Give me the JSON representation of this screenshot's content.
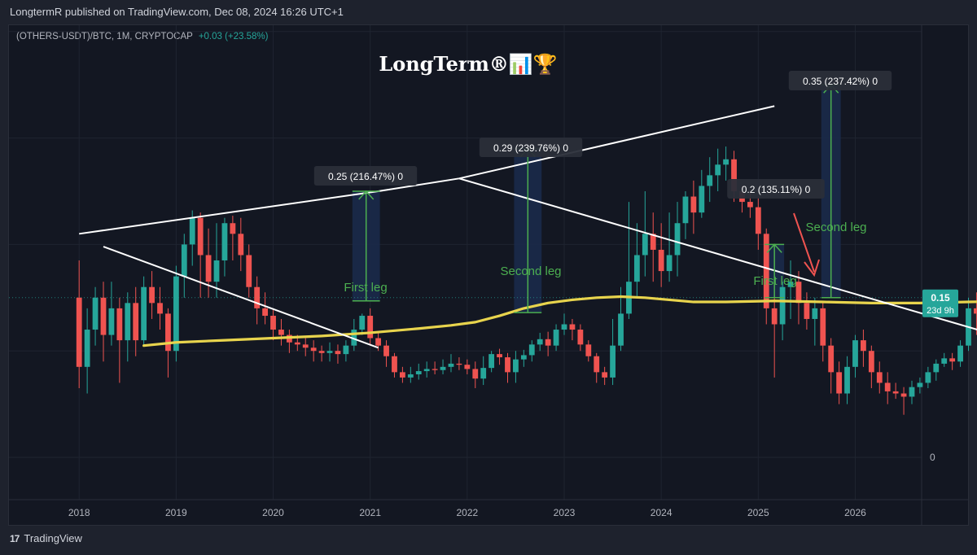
{
  "header": {
    "publisher_text": "LongtermR published on TradingView.com, Dec 08, 2024 16:26 UTC+1"
  },
  "symbol_info": {
    "label": "(OTHERS-USDT)/BTC, 1M, CRYPTOCAP",
    "change": "+0.03 (+23.58%)"
  },
  "watermark": {
    "text": "LongTerm®📊🏆"
  },
  "footer": {
    "logo_text": "TradingView"
  },
  "colors": {
    "up": "#26a69a",
    "down": "#ef5350",
    "ma": "#e8d44d",
    "trendline": "#ffffff",
    "measure": "#4caf50",
    "projection_fill": "#1b2a4a",
    "red_arrow": "#ef5350",
    "price_badge": "#26a69a"
  },
  "chart_data": {
    "type": "candlestick",
    "x_tick_labels": [
      "2018",
      "2019",
      "2020",
      "2021",
      "2022",
      "2023",
      "2024",
      "2025",
      "2026"
    ],
    "y_tick_labels": [
      "0"
    ],
    "current_price": {
      "value": "0.15",
      "countdown": "23d 9h"
    },
    "measurements": [
      {
        "label": "0.25 (216.47%) 0",
        "leg_text": "First leg",
        "from": 0.147,
        "to": 0.25
      },
      {
        "label": "0.29 (239.76%) 0",
        "leg_text": "Second leg",
        "from": 0.136,
        "to": 0.29
      },
      {
        "label": "0.2 (135.11%) 0",
        "leg_text": "First leg",
        "from": 0.15,
        "to": 0.2
      },
      {
        "label": "0.35 (237.42%) 0",
        "leg_text": "Second leg",
        "from": 0.15,
        "to": 0.35
      }
    ],
    "candles": [
      [
        0.15,
        0.085,
        0.185,
        0.065
      ],
      [
        0.085,
        0.12,
        0.14,
        0.06
      ],
      [
        0.12,
        0.15,
        0.16,
        0.105
      ],
      [
        0.15,
        0.115,
        0.165,
        0.09
      ],
      [
        0.115,
        0.14,
        0.165,
        0.105
      ],
      [
        0.14,
        0.11,
        0.15,
        0.07
      ],
      [
        0.11,
        0.145,
        0.155,
        0.09
      ],
      [
        0.145,
        0.11,
        0.16,
        0.095
      ],
      [
        0.11,
        0.16,
        0.17,
        0.105
      ],
      [
        0.16,
        0.145,
        0.175,
        0.13
      ],
      [
        0.145,
        0.135,
        0.16,
        0.12
      ],
      [
        0.135,
        0.1,
        0.14,
        0.075
      ],
      [
        0.1,
        0.17,
        0.18,
        0.09
      ],
      [
        0.17,
        0.2,
        0.21,
        0.15
      ],
      [
        0.2,
        0.225,
        0.232,
        0.18
      ],
      [
        0.225,
        0.19,
        0.23,
        0.15
      ],
      [
        0.19,
        0.165,
        0.215,
        0.15
      ],
      [
        0.165,
        0.185,
        0.22,
        0.15
      ],
      [
        0.185,
        0.22,
        0.225,
        0.17
      ],
      [
        0.22,
        0.21,
        0.227,
        0.185
      ],
      [
        0.21,
        0.19,
        0.225,
        0.175
      ],
      [
        0.19,
        0.16,
        0.2,
        0.15
      ],
      [
        0.16,
        0.14,
        0.17,
        0.125
      ],
      [
        0.14,
        0.133,
        0.155,
        0.125
      ],
      [
        0.133,
        0.12,
        0.14,
        0.11
      ],
      [
        0.12,
        0.115,
        0.13,
        0.105
      ],
      [
        0.115,
        0.108,
        0.12,
        0.098
      ],
      [
        0.108,
        0.106,
        0.115,
        0.1
      ],
      [
        0.106,
        0.103,
        0.112,
        0.095
      ],
      [
        0.103,
        0.1,
        0.11,
        0.09
      ],
      [
        0.1,
        0.098,
        0.105,
        0.09
      ],
      [
        0.098,
        0.1,
        0.108,
        0.09
      ],
      [
        0.1,
        0.097,
        0.106,
        0.088
      ],
      [
        0.097,
        0.105,
        0.11,
        0.09
      ],
      [
        0.105,
        0.12,
        0.13,
        0.1
      ],
      [
        0.12,
        0.133,
        0.135,
        0.115
      ],
      [
        0.133,
        0.112,
        0.14,
        0.105
      ],
      [
        0.112,
        0.105,
        0.118,
        0.1
      ],
      [
        0.105,
        0.095,
        0.11,
        0.085
      ],
      [
        0.095,
        0.08,
        0.098,
        0.075
      ],
      [
        0.08,
        0.075,
        0.085,
        0.07
      ],
      [
        0.075,
        0.078,
        0.085,
        0.07
      ],
      [
        0.078,
        0.081,
        0.088,
        0.073
      ],
      [
        0.081,
        0.083,
        0.09,
        0.075
      ],
      [
        0.083,
        0.082,
        0.09,
        0.078
      ],
      [
        0.082,
        0.085,
        0.092,
        0.078
      ],
      [
        0.085,
        0.088,
        0.097,
        0.08
      ],
      [
        0.088,
        0.087,
        0.094,
        0.082
      ],
      [
        0.087,
        0.083,
        0.092,
        0.078
      ],
      [
        0.083,
        0.074,
        0.09,
        0.065
      ],
      [
        0.074,
        0.084,
        0.095,
        0.068
      ],
      [
        0.084,
        0.097,
        0.1,
        0.08
      ],
      [
        0.097,
        0.094,
        0.102,
        0.087
      ],
      [
        0.094,
        0.08,
        0.098,
        0.07
      ],
      [
        0.08,
        0.092,
        0.1,
        0.07
      ],
      [
        0.092,
        0.096,
        0.101,
        0.085
      ],
      [
        0.096,
        0.106,
        0.11,
        0.09
      ],
      [
        0.106,
        0.111,
        0.117,
        0.1
      ],
      [
        0.111,
        0.105,
        0.118,
        0.095
      ],
      [
        0.105,
        0.12,
        0.125,
        0.1
      ],
      [
        0.12,
        0.125,
        0.135,
        0.115
      ],
      [
        0.125,
        0.12,
        0.13,
        0.11
      ],
      [
        0.12,
        0.106,
        0.125,
        0.1
      ],
      [
        0.106,
        0.095,
        0.11,
        0.09
      ],
      [
        0.095,
        0.08,
        0.098,
        0.07
      ],
      [
        0.08,
        0.075,
        0.085,
        0.068
      ],
      [
        0.075,
        0.105,
        0.13,
        0.068
      ],
      [
        0.105,
        0.135,
        0.16,
        0.1
      ],
      [
        0.135,
        0.165,
        0.24,
        0.13
      ],
      [
        0.165,
        0.19,
        0.22,
        0.15
      ],
      [
        0.19,
        0.21,
        0.25,
        0.17
      ],
      [
        0.21,
        0.195,
        0.23,
        0.165
      ],
      [
        0.195,
        0.175,
        0.22,
        0.16
      ],
      [
        0.175,
        0.19,
        0.23,
        0.165
      ],
      [
        0.19,
        0.22,
        0.24,
        0.17
      ],
      [
        0.22,
        0.245,
        0.25,
        0.205
      ],
      [
        0.245,
        0.23,
        0.26,
        0.21
      ],
      [
        0.23,
        0.255,
        0.27,
        0.225
      ],
      [
        0.255,
        0.265,
        0.282,
        0.24
      ],
      [
        0.265,
        0.275,
        0.29,
        0.25
      ],
      [
        0.275,
        0.28,
        0.292,
        0.26
      ],
      [
        0.28,
        0.25,
        0.288,
        0.24
      ],
      [
        0.25,
        0.24,
        0.255,
        0.23
      ],
      [
        0.24,
        0.235,
        0.25,
        0.225
      ],
      [
        0.235,
        0.21,
        0.245,
        0.195
      ],
      [
        0.21,
        0.14,
        0.215,
        0.125
      ],
      [
        0.14,
        0.125,
        0.15,
        0.075
      ],
      [
        0.125,
        0.16,
        0.165,
        0.11
      ],
      [
        0.16,
        0.165,
        0.185,
        0.13
      ],
      [
        0.165,
        0.145,
        0.175,
        0.125
      ],
      [
        0.145,
        0.13,
        0.155,
        0.12
      ],
      [
        0.13,
        0.14,
        0.15,
        0.105
      ],
      [
        0.14,
        0.105,
        0.145,
        0.09
      ],
      [
        0.105,
        0.08,
        0.112,
        0.06
      ],
      [
        0.08,
        0.06,
        0.09,
        0.05
      ],
      [
        0.06,
        0.085,
        0.095,
        0.05
      ],
      [
        0.085,
        0.11,
        0.115,
        0.075
      ],
      [
        0.11,
        0.1,
        0.12,
        0.085
      ],
      [
        0.1,
        0.08,
        0.105,
        0.065
      ],
      [
        0.08,
        0.07,
        0.09,
        0.06
      ],
      [
        0.07,
        0.062,
        0.08,
        0.05
      ],
      [
        0.062,
        0.06,
        0.07,
        0.055
      ],
      [
        0.06,
        0.057,
        0.066,
        0.04
      ],
      [
        0.057,
        0.066,
        0.072,
        0.05
      ],
      [
        0.066,
        0.07,
        0.075,
        0.06
      ],
      [
        0.07,
        0.08,
        0.085,
        0.065
      ],
      [
        0.08,
        0.088,
        0.092,
        0.072
      ],
      [
        0.088,
        0.093,
        0.098,
        0.085
      ],
      [
        0.093,
        0.09,
        0.098,
        0.082
      ],
      [
        0.09,
        0.105,
        0.11,
        0.085
      ],
      [
        0.105,
        0.14,
        0.15,
        0.1
      ],
      [
        0.14,
        0.135,
        0.155,
        0.115
      ],
      [
        0.135,
        0.155,
        0.16,
        0.13
      ],
      [
        0.155,
        0.14,
        0.16,
        0.125
      ],
      [
        0.14,
        0.18,
        0.185,
        0.13
      ],
      [
        0.18,
        0.15,
        0.19,
        0.14
      ],
      [
        0.15,
        0.135,
        0.17,
        0.125
      ],
      [
        0.135,
        0.13,
        0.15,
        0.118
      ],
      [
        0.13,
        0.11,
        0.14,
        0.095
      ],
      [
        0.11,
        0.09,
        0.12,
        0.075
      ],
      [
        0.09,
        0.105,
        0.11,
        0.085
      ],
      [
        0.105,
        0.09,
        0.11,
        0.08
      ],
      [
        0.09,
        0.11,
        0.112,
        0.085
      ],
      [
        0.11,
        0.095,
        0.115,
        0.085
      ],
      [
        0.095,
        0.105,
        0.112,
        0.09
      ],
      [
        0.105,
        0.135,
        0.14,
        0.095
      ],
      [
        0.135,
        0.158,
        0.162,
        0.12
      ]
    ],
    "ma_line": [
      [
        8,
        0.105
      ],
      [
        12,
        0.108
      ],
      [
        18,
        0.11
      ],
      [
        24,
        0.112
      ],
      [
        30,
        0.114
      ],
      [
        36,
        0.117
      ],
      [
        42,
        0.121
      ],
      [
        46,
        0.124
      ],
      [
        49,
        0.127
      ],
      [
        52,
        0.133
      ],
      [
        55,
        0.14
      ],
      [
        58,
        0.145
      ],
      [
        61,
        0.148
      ],
      [
        64,
        0.15
      ],
      [
        67,
        0.151
      ],
      [
        70,
        0.15
      ],
      [
        73,
        0.148
      ],
      [
        76,
        0.146
      ],
      [
        80,
        0.146
      ],
      [
        86,
        0.147
      ],
      [
        92,
        0.146
      ],
      [
        98,
        0.145
      ],
      [
        104,
        0.145
      ],
      [
        110,
        0.146
      ],
      [
        116,
        0.147
      ],
      [
        119,
        0.148
      ]
    ],
    "trendlines": [
      {
        "from": [
          0,
          0.21
        ],
        "to": [
          37,
          0.25
        ]
      },
      {
        "from": [
          37,
          0.25
        ],
        "to": [
          47,
          0.262
        ]
      },
      {
        "from": [
          47,
          0.262
        ],
        "to": [
          86,
          0.33
        ]
      },
      {
        "from": [
          3,
          0.198
        ],
        "to": [
          37,
          0.103
        ]
      },
      {
        "from": [
          47,
          0.262
        ],
        "to": [
          112,
          0.118
        ]
      }
    ]
  }
}
